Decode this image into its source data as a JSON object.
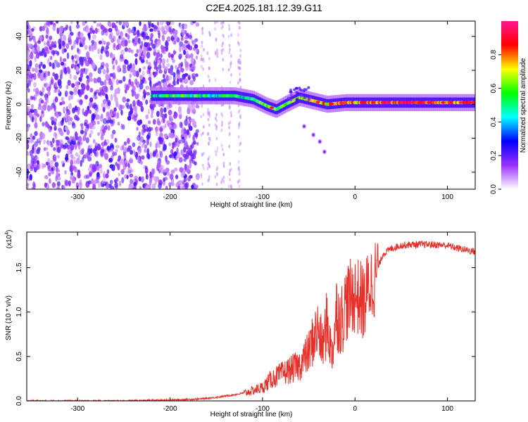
{
  "title": "C2E4.2025.181.12.39.G11",
  "chart_data": [
    {
      "type": "heatmap",
      "name": "spectrogram",
      "xlabel": "Height of straight line (km)",
      "ylabel": "Frequency (Hz)",
      "xlim": [
        -355,
        130
      ],
      "ylim": [
        -50,
        49
      ],
      "xticks": [
        -300,
        -200,
        -100,
        0,
        100
      ],
      "yticks": [
        -40,
        -20,
        0,
        20,
        40
      ],
      "colorbar": {
        "label": "Normalized spectral amplitude",
        "range": [
          0,
          1
        ],
        "ticks": [
          "0.0",
          "0.2",
          "0.4",
          "0.6",
          "0.8"
        ],
        "colormap": [
          "#ffffff",
          "#9b30ff",
          "#0000ff",
          "#00ffff",
          "#00ff00",
          "#ffff00",
          "#ff0000",
          "#ff1493"
        ]
      },
      "features": {
        "noise_region_x": [
          -355,
          -170
        ],
        "sparse_noise_x": [
          -170,
          -120
        ],
        "main_band": [
          {
            "x": -220,
            "y": 5,
            "amp": 0.45
          },
          {
            "x": -190,
            "y": 5,
            "amp": 0.55
          },
          {
            "x": -160,
            "y": 5,
            "amp": 0.5
          },
          {
            "x": -130,
            "y": 5,
            "amp": 0.5
          },
          {
            "x": -110,
            "y": 3,
            "amp": 0.5
          },
          {
            "x": -95,
            "y": -1,
            "amp": 0.6
          },
          {
            "x": -85,
            "y": -3,
            "amp": 0.55
          },
          {
            "x": -75,
            "y": 0,
            "amp": 0.55
          },
          {
            "x": -60,
            "y": 4,
            "amp": 0.65
          },
          {
            "x": -45,
            "y": 2,
            "amp": 0.7
          },
          {
            "x": -30,
            "y": 0,
            "amp": 0.75
          },
          {
            "x": -10,
            "y": 1,
            "amp": 0.8
          },
          {
            "x": 10,
            "y": 1,
            "amp": 0.8
          },
          {
            "x": 40,
            "y": 1,
            "amp": 0.85
          },
          {
            "x": 70,
            "y": 1,
            "amp": 0.9
          },
          {
            "x": 100,
            "y": 1,
            "amp": 0.8
          },
          {
            "x": 130,
            "y": 1,
            "amp": 0.8
          }
        ],
        "side_trail": [
          {
            "x": -55,
            "y": -13
          },
          {
            "x": -45,
            "y": -18
          },
          {
            "x": -38,
            "y": -22
          },
          {
            "x": -33,
            "y": -28
          }
        ]
      }
    },
    {
      "type": "line",
      "name": "snr",
      "xlabel": "Height of straight line (km)",
      "ylabel": "SNR (10 * v/v)",
      "y_multiplier": "(x10",
      "y_multiplier_exp": "4",
      "y_multiplier_close": ")",
      "xlim": [
        -355,
        130
      ],
      "ylim": [
        0,
        1.9
      ],
      "xticks": [
        -300,
        -200,
        -100,
        0,
        100
      ],
      "yticks": [
        0.0,
        0.5,
        1.0,
        1.5
      ],
      "ytick_labels": [
        "0.0",
        "0.5",
        "1.0",
        "1.5"
      ],
      "color": "#e8302a",
      "series": [
        {
          "x": [
            -355,
            -300,
            -250,
            -200,
            -170,
            -150,
            -130,
            -115,
            -100,
            -90,
            -80,
            -70,
            -60,
            -50,
            -45,
            -40,
            -35,
            -30,
            -25,
            -20,
            -15,
            -10,
            -5,
            0,
            5,
            10,
            15,
            20,
            25,
            30,
            40,
            50,
            60,
            80,
            100,
            110,
            120,
            130
          ],
          "y": [
            0.0,
            0.0,
            0.0,
            0.01,
            0.02,
            0.04,
            0.07,
            0.1,
            0.15,
            0.25,
            0.3,
            0.35,
            0.4,
            0.55,
            0.7,
            0.8,
            0.6,
            0.9,
            0.5,
            1.0,
            0.9,
            1.1,
            1.15,
            1.2,
            1.15,
            1.1,
            1.3,
            1.35,
            1.5,
            1.65,
            1.72,
            1.75,
            1.76,
            1.76,
            1.75,
            1.72,
            1.7,
            1.68
          ]
        }
      ]
    }
  ]
}
